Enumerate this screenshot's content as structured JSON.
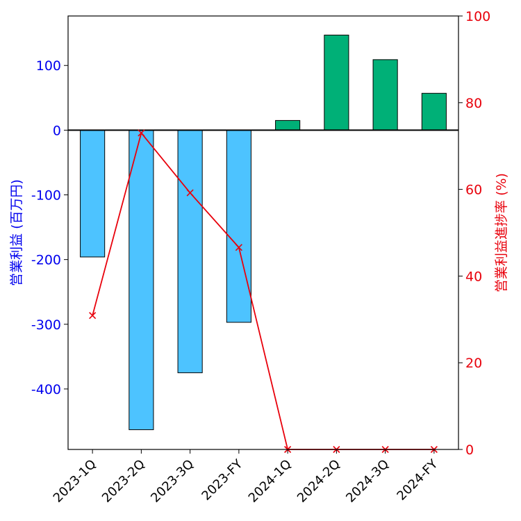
{
  "chart_data": {
    "type": "bar",
    "categories": [
      "2023-1Q",
      "2023-2Q",
      "2023-3Q",
      "2023-FY",
      "2024-1Q",
      "2024-2Q",
      "2024-3Q",
      "2024-FY"
    ],
    "series": [
      {
        "name": "営業利益 (百万円)",
        "type": "bar",
        "axis": "left",
        "values": [
          -196,
          -463,
          -375,
          -297,
          15,
          147,
          109,
          57
        ],
        "colors": [
          "#4dc3ff",
          "#4dc3ff",
          "#4dc3ff",
          "#4dc3ff",
          "#00b077",
          "#00b077",
          "#00b077",
          "#00b077"
        ]
      },
      {
        "name": "営業利益進捗率 (%)",
        "type": "line",
        "axis": "right",
        "marker": "x",
        "color": "#e8000b",
        "values": [
          30.9,
          73.0,
          59.2,
          46.6,
          0,
          0,
          0,
          0
        ]
      }
    ],
    "ylabel_left": "営業利益 (百万円)",
    "ylabel_right": "営業利益進捗率 (%)",
    "ylim_left": [
      -493.5,
      176.5
    ],
    "ylim_right": [
      0,
      100
    ],
    "yticks_left": [
      100,
      0,
      -100,
      -200,
      -300,
      -400
    ],
    "yticks_right": [
      0,
      20,
      40,
      60,
      80,
      100
    ],
    "left_axis_color": "#0000ee",
    "right_axis_color": "#e8000b",
    "zero_line": true,
    "grid": false
  }
}
